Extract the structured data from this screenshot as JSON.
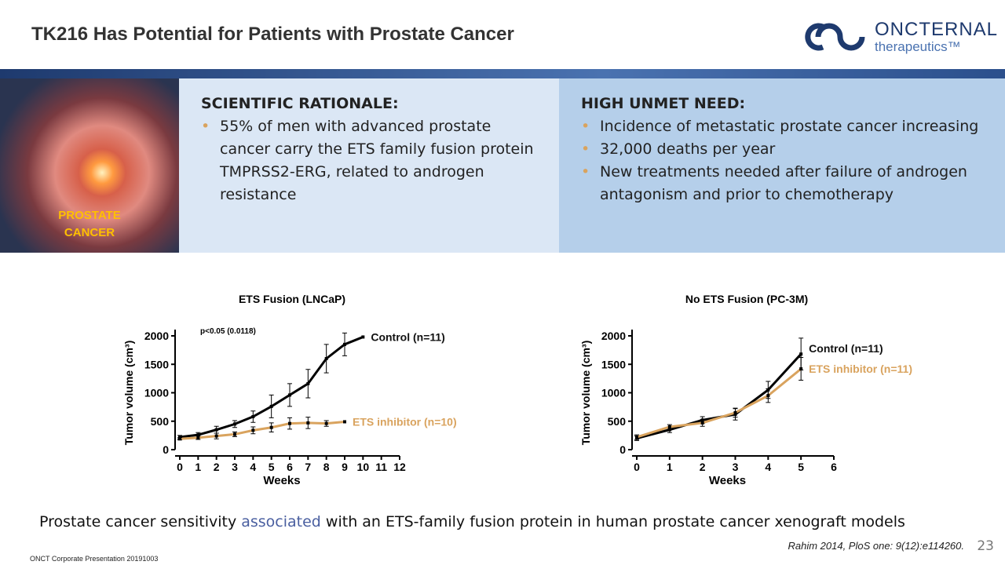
{
  "header": {
    "title": "TK216 Has Potential for Patients with Prostate Cancer",
    "logo_name": "ONCTERNAL",
    "logo_sub": "therapeutics™"
  },
  "image_label": [
    "PROSTATE",
    "CANCER"
  ],
  "panels": [
    {
      "heading": "SCIENTIFIC RATIONALE:",
      "bullets": [
        "55% of men with advanced prostate cancer carry the ETS family fusion protein TMPRSS2-ERG, related to androgen resistance"
      ]
    },
    {
      "heading": "HIGH UNMET NEED:",
      "bullets": [
        "Incidence of metastatic prostate cancer increasing",
        "32,000 deaths per year",
        "New treatments needed after failure of androgen antagonism and prior to chemotherapy"
      ]
    }
  ],
  "chart_data": [
    {
      "type": "line",
      "title": "ETS Fusion (LNCaP)",
      "x_label": "Weeks",
      "y_label": "Tumor volume (cm³)",
      "annotation": "p<0.05 (0.0118)",
      "xlim": [
        0,
        12
      ],
      "xticks": [
        0,
        1,
        2,
        3,
        4,
        5,
        6,
        7,
        8,
        9,
        10,
        11,
        12
      ],
      "ylim": [
        0,
        2000
      ],
      "yticks": [
        0,
        500,
        1000,
        1500,
        2000
      ],
      "series": [
        {
          "name": "Control (n=11)",
          "color": "#000000",
          "x": [
            0,
            1,
            2,
            3,
            4,
            5,
            6,
            7,
            8,
            9,
            10
          ],
          "values": [
            220,
            260,
            350,
            450,
            580,
            760,
            960,
            1160,
            1600,
            1850,
            1980
          ],
          "errors": [
            30,
            40,
            60,
            60,
            100,
            200,
            200,
            250,
            250,
            200,
            null
          ]
        },
        {
          "name": "ETS inhibitor (n=10)",
          "color": "#d9a35e",
          "x": [
            0,
            1,
            2,
            3,
            4,
            5,
            6,
            7,
            8,
            9
          ],
          "values": [
            190,
            210,
            240,
            270,
            340,
            390,
            460,
            470,
            460,
            490
          ],
          "errors": [
            20,
            30,
            50,
            40,
            60,
            80,
            100,
            100,
            50,
            null
          ]
        }
      ]
    },
    {
      "type": "line",
      "title": "No ETS Fusion (PC-3M)",
      "x_label": "Weeks",
      "y_label": "Tumor volume (cm³)",
      "xlim": [
        0,
        6
      ],
      "xticks": [
        0,
        1,
        2,
        3,
        4,
        5,
        6
      ],
      "ylim": [
        0,
        2000
      ],
      "yticks": [
        0,
        500,
        1000,
        1500,
        2000
      ],
      "series": [
        {
          "name": "Control (n=11)",
          "color": "#000000",
          "x": [
            0,
            1,
            2,
            3,
            4,
            5
          ],
          "values": [
            200,
            350,
            520,
            620,
            1050,
            1680
          ],
          "errors": [
            40,
            50,
            60,
            100,
            150,
            280
          ]
        },
        {
          "name": "ETS inhibitor (n=11)",
          "color": "#d9a35e",
          "x": [
            0,
            1,
            2,
            3,
            4,
            5
          ],
          "values": [
            220,
            400,
            470,
            650,
            950,
            1420
          ],
          "errors": [
            40,
            40,
            60,
            80,
            120,
            200
          ]
        }
      ]
    }
  ],
  "caption": [
    "Prostate cancer sensitivity",
    "associated",
    "with an ETS-family fusion protein in human prostate cancer xenograft models"
  ],
  "citation": "Rahim 2014, PloS one: 9(12):e114260.",
  "footer": "ONCT Corporate Presentation 20191003",
  "page_number": "23"
}
